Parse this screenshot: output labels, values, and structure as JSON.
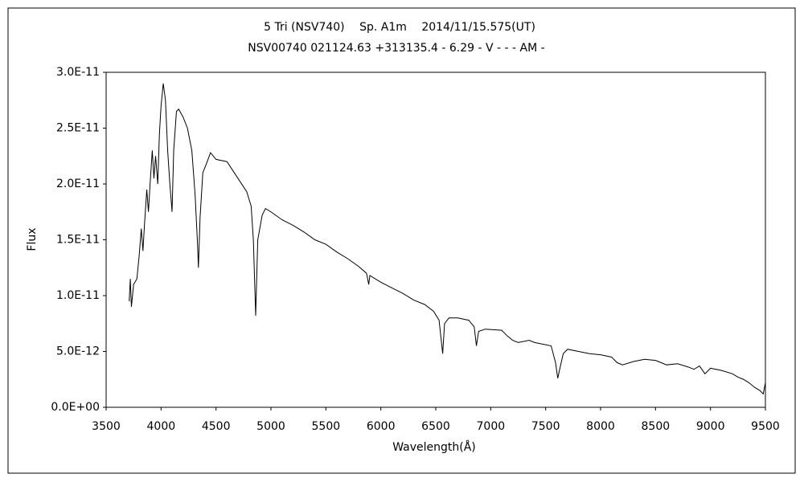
{
  "chart_data": {
    "type": "line",
    "title": "5 Tri (NSV740)　 Sp. A1m　 2014/11/15.575(UT)",
    "subtitle": "NSV00740 021124.63 +313135.4 - 6.29 - V - - - AM -",
    "xlabel": "Wavelength(Å)",
    "ylabel": "Flux",
    "color": "#000000",
    "x": [
      3710,
      3720,
      3730,
      3750,
      3780,
      3800,
      3820,
      3835,
      3850,
      3870,
      3885,
      3900,
      3920,
      3935,
      3950,
      3970,
      3985,
      4000,
      4020,
      4040,
      4060,
      4080,
      4100,
      4115,
      4140,
      4160,
      4200,
      4240,
      4280,
      4310,
      4330,
      4340,
      4355,
      4380,
      4420,
      4450,
      4500,
      4600,
      4700,
      4780,
      4820,
      4840,
      4861,
      4880,
      4920,
      4950,
      5000,
      5100,
      5200,
      5300,
      5400,
      5500,
      5600,
      5700,
      5800,
      5870,
      5890,
      5900,
      6000,
      6100,
      6200,
      6300,
      6400,
      6480,
      6530,
      6563,
      6580,
      6620,
      6700,
      6800,
      6850,
      6870,
      6890,
      6950,
      7100,
      7150,
      7200,
      7250,
      7350,
      7400,
      7550,
      7590,
      7610,
      7630,
      7660,
      7700,
      7800,
      7900,
      8000,
      8100,
      8150,
      8200,
      8300,
      8400,
      8500,
      8550,
      8600,
      8700,
      8800,
      8850,
      8900,
      8950,
      9000,
      9100,
      9200,
      9250,
      9300,
      9350,
      9400,
      9450,
      9480,
      9500
    ],
    "values": [
      9.5e-12,
      1.15e-11,
      9e-12,
      1.1e-11,
      1.15e-11,
      1.35e-11,
      1.6e-11,
      1.4e-11,
      1.65e-11,
      1.95e-11,
      1.75e-11,
      2e-11,
      2.3e-11,
      2.05e-11,
      2.25e-11,
      2e-11,
      2.45e-11,
      2.7e-11,
      2.9e-11,
      2.75e-11,
      2.3e-11,
      2e-11,
      1.75e-11,
      2.3e-11,
      2.65e-11,
      2.67e-11,
      2.6e-11,
      2.5e-11,
      2.3e-11,
      1.9e-11,
      1.5e-11,
      1.25e-11,
      1.7e-11,
      2.1e-11,
      2.2e-11,
      2.28e-11,
      2.22e-11,
      2.2e-11,
      2.05e-11,
      1.93e-11,
      1.8e-11,
      1.5e-11,
      8.2e-12,
      1.5e-11,
      1.72e-11,
      1.78e-11,
      1.75e-11,
      1.68e-11,
      1.63e-11,
      1.57e-11,
      1.5e-11,
      1.46e-11,
      1.39e-11,
      1.33e-11,
      1.26e-11,
      1.2e-11,
      1.1e-11,
      1.18e-11,
      1.12e-11,
      1.07e-11,
      1.02e-11,
      9.6e-12,
      9.2e-12,
      8.6e-12,
      7.8e-12,
      4.8e-12,
      7.5e-12,
      8e-12,
      8e-12,
      7.8e-12,
      7.2e-12,
      5.5e-12,
      6.8e-12,
      7e-12,
      6.9e-12,
      6.4e-12,
      6e-12,
      5.8e-12,
      6e-12,
      5.8e-12,
      5.5e-12,
      4e-12,
      2.6e-12,
      3.5e-12,
      4.8e-12,
      5.2e-12,
      5e-12,
      4.8e-12,
      4.7e-12,
      4.5e-12,
      4e-12,
      3.8e-12,
      4.1e-12,
      4.3e-12,
      4.2e-12,
      4e-12,
      3.8e-12,
      3.9e-12,
      3.6e-12,
      3.4e-12,
      3.7e-12,
      3e-12,
      3.5e-12,
      3.3e-12,
      3e-12,
      2.7e-12,
      2.5e-12,
      2.2e-12,
      1.8e-12,
      1.5e-12,
      1.2e-12,
      2.2e-12
    ],
    "xlim": [
      3500,
      9500
    ],
    "xticks": [
      3500,
      4000,
      4500,
      5000,
      5500,
      6000,
      6500,
      7000,
      7500,
      8000,
      8500,
      9000,
      9500
    ],
    "ylim": [
      0,
      3e-11
    ],
    "yticks": [
      {
        "value": 0,
        "label": "0.0E+00"
      },
      {
        "value": 5e-12,
        "label": "5.0E-12"
      },
      {
        "value": 1e-11,
        "label": "1.0E-11"
      },
      {
        "value": 1.5e-11,
        "label": "1.5E-11"
      },
      {
        "value": 2e-11,
        "label": "2.0E-11"
      },
      {
        "value": 2.5e-11,
        "label": "2.5E-11"
      },
      {
        "value": 3e-11,
        "label": "3.0E-11"
      }
    ]
  }
}
